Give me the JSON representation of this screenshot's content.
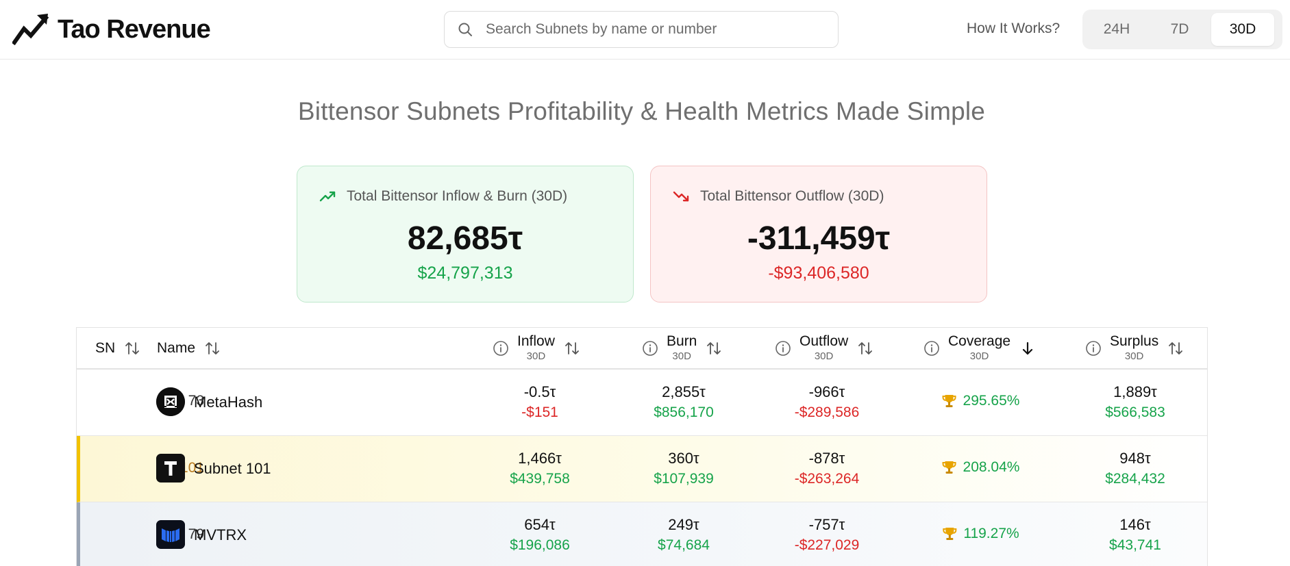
{
  "header": {
    "logo_text": "Tao Revenue",
    "search_placeholder": "Search Subnets by name or number",
    "how_it_works": "How It Works?",
    "periods": [
      "24H",
      "7D",
      "30D"
    ],
    "active_period": "30D"
  },
  "page_title": "Bittensor Subnets Profitability & Health Metrics Made Simple",
  "cards": {
    "inflow": {
      "label": "Total Bittensor Inflow & Burn (30D)",
      "value": "82,685τ",
      "usd": "$24,797,313"
    },
    "outflow": {
      "label": "Total Bittensor Outflow (30D)",
      "value": "-311,459τ",
      "usd": "-$93,406,580"
    }
  },
  "table": {
    "columns": {
      "sn": "SN",
      "name": "Name",
      "inflow": {
        "label": "Inflow",
        "sub": "30D"
      },
      "burn": {
        "label": "Burn",
        "sub": "30D"
      },
      "outflow": {
        "label": "Outflow",
        "sub": "30D"
      },
      "coverage": {
        "label": "Coverage",
        "sub": "30D"
      },
      "surplus": {
        "label": "Surplus",
        "sub": "30D"
      }
    },
    "rows": [
      {
        "sn": "73",
        "name": "MetaHash",
        "inflow_tao": "-0.5τ",
        "inflow_usd": "-$151",
        "burn_tao": "2,855τ",
        "burn_usd": "$856,170",
        "outflow_tao": "-966τ",
        "outflow_usd": "-$289,586",
        "coverage": "295.65%",
        "surplus_tao": "1,889τ",
        "surplus_usd": "$566,583"
      },
      {
        "sn": "101",
        "name": "Subnet 101",
        "inflow_tao": "1,466τ",
        "inflow_usd": "$439,758",
        "burn_tao": "360τ",
        "burn_usd": "$107,939",
        "outflow_tao": "-878τ",
        "outflow_usd": "-$263,264",
        "coverage": "208.04%",
        "surplus_tao": "948τ",
        "surplus_usd": "$284,432"
      },
      {
        "sn": "79",
        "name": "MVTRX",
        "inflow_tao": "654τ",
        "inflow_usd": "$196,086",
        "burn_tao": "249τ",
        "burn_usd": "$74,684",
        "outflow_tao": "-757τ",
        "outflow_usd": "-$227,029",
        "coverage": "119.27%",
        "surplus_tao": "146τ",
        "surplus_usd": "$43,741"
      }
    ]
  },
  "colors": {
    "positive": "#16a34a",
    "negative": "#dc2626",
    "gold": "#f2c200",
    "silver": "#9aa5b5"
  }
}
